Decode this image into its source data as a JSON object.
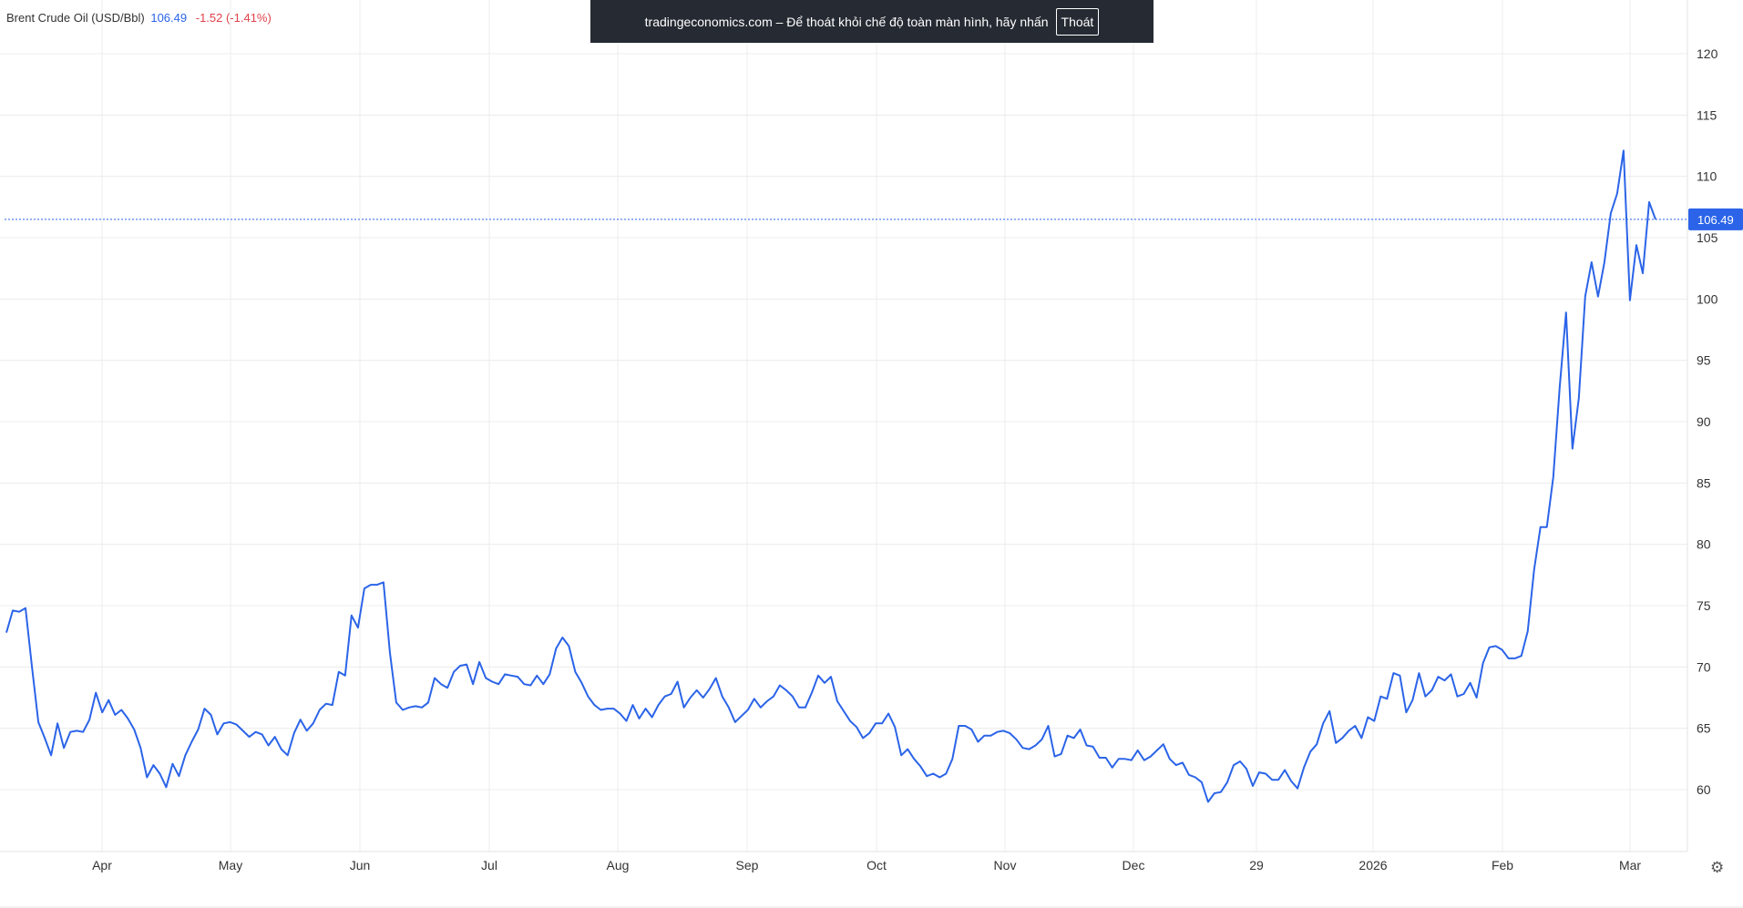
{
  "legend": {
    "name": "Brent Crude Oil (USD/Bbl)",
    "price": "106.49",
    "change": "-1.52 (-1.41%)"
  },
  "banner": {
    "text": "tradingeconomics.com – Để thoát khỏi chế độ toàn màn hình, hãy nhấn",
    "button_label": "Thoát"
  },
  "icons": {
    "settings": "gear-icon"
  },
  "colors": {
    "line": "#2b64e8",
    "change_negative": "#e0424a",
    "grid": "#ececec",
    "banner_bg": "#252a33"
  },
  "chart_data": {
    "type": "line",
    "title": "Brent Crude Oil (USD/Bbl)",
    "ylim": [
      55,
      120
    ],
    "y_ticks": [
      60,
      65,
      70,
      75,
      80,
      85,
      90,
      95,
      100,
      105,
      110,
      115,
      120
    ],
    "x_ticks": [
      "Apr",
      "May",
      "Jun",
      "Jul",
      "Aug",
      "Sep",
      "Oct",
      "Nov",
      "Dec",
      "29",
      "2026",
      "Feb",
      "Mar"
    ],
    "last_price_label": "106.49",
    "last_price": 106.49,
    "grid": true,
    "series": [
      {
        "values": [
          72.8,
          74.6,
          74.5,
          74.8,
          70.0,
          65.5,
          64.2,
          62.8,
          65.4,
          63.4,
          64.7,
          64.8,
          64.7,
          65.7,
          67.9,
          66.3,
          67.3,
          66.1,
          66.5,
          65.8,
          64.9,
          63.4,
          61.0,
          62.0,
          61.3,
          60.2,
          62.1,
          61.1,
          62.8,
          63.9,
          64.9,
          66.6,
          66.1,
          64.5,
          65.4,
          65.5,
          65.3,
          64.8,
          64.3,
          64.7,
          64.5,
          63.6,
          64.3,
          63.3,
          62.8,
          64.6,
          65.7,
          64.8,
          65.4,
          66.5,
          67.0,
          66.9,
          69.6,
          69.3,
          74.2,
          73.2,
          76.4,
          76.7,
          76.7,
          76.9,
          71.2,
          67.1,
          66.5,
          66.7,
          66.8,
          66.7,
          67.1,
          69.1,
          68.6,
          68.3,
          69.6,
          70.1,
          70.2,
          68.6,
          70.4,
          69.1,
          68.8,
          68.6,
          69.4,
          69.3,
          69.2,
          68.6,
          68.5,
          69.3,
          68.6,
          69.4,
          71.5,
          72.4,
          71.7,
          69.6,
          68.7,
          67.6,
          66.9,
          66.5,
          66.6,
          66.6,
          66.2,
          65.6,
          66.9,
          65.8,
          66.6,
          65.9,
          66.9,
          67.6,
          67.8,
          68.8,
          66.7,
          67.5,
          68.1,
          67.5,
          68.2,
          69.1,
          67.6,
          66.7,
          65.5,
          66.0,
          66.5,
          67.4,
          66.7,
          67.2,
          67.6,
          68.5,
          68.1,
          67.6,
          66.7,
          66.7,
          67.9,
          69.3,
          68.7,
          69.2,
          67.2,
          66.4,
          65.6,
          65.1,
          64.2,
          64.6,
          65.4,
          65.4,
          66.2,
          65.1,
          62.8,
          63.3,
          62.5,
          61.9,
          61.1,
          61.3,
          61.0,
          61.3,
          62.5,
          65.2,
          65.2,
          64.9,
          63.9,
          64.4,
          64.4,
          64.7,
          64.8,
          64.6,
          64.1,
          63.4,
          63.3,
          63.6,
          64.1,
          65.2,
          62.7,
          62.9,
          64.4,
          64.2,
          64.9,
          63.6,
          63.5,
          62.6,
          62.6,
          61.8,
          62.5,
          62.5,
          62.4,
          63.2,
          62.4,
          62.7,
          63.2,
          63.7,
          62.5,
          62.0,
          62.2,
          61.2,
          61.0,
          60.6,
          59.0,
          59.7,
          59.8,
          60.6,
          62.0,
          62.3,
          61.7,
          60.3,
          61.4,
          61.3,
          60.8,
          60.8,
          61.6,
          60.7,
          60.1,
          61.8,
          63.1,
          63.7,
          65.4,
          66.4,
          63.8,
          64.2,
          64.8,
          65.2,
          64.2,
          65.9,
          65.6,
          67.6,
          67.4,
          69.5,
          69.3,
          66.3,
          67.3,
          69.5,
          67.6,
          68.1,
          69.2,
          68.9,
          69.4,
          67.6,
          67.8,
          68.7,
          67.5,
          70.3,
          71.6,
          71.7,
          71.4,
          70.7,
          70.7,
          70.9,
          72.9,
          77.9,
          81.4,
          81.4,
          85.5,
          92.8,
          98.9,
          87.8,
          91.9,
          100.2,
          103.0,
          100.2,
          103.0,
          107.0,
          108.6,
          112.1,
          99.9,
          104.4,
          102.1,
          107.9,
          106.49
        ]
      }
    ]
  }
}
